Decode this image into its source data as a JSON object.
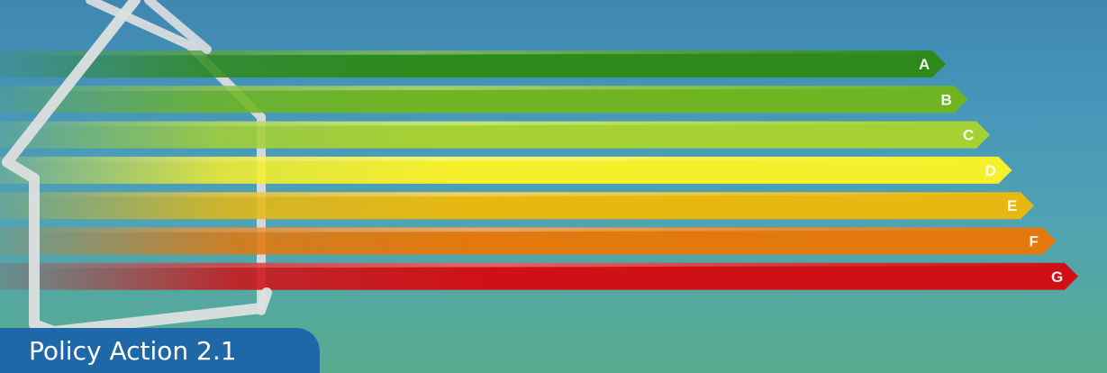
{
  "caption": {
    "text": "Policy Action 2.1"
  },
  "energy_scale": {
    "ratings": [
      "A",
      "B",
      "C",
      "D",
      "E",
      "F",
      "G"
    ],
    "colors": [
      "#2f8a1c",
      "#6fb522",
      "#a6d133",
      "#f6ef2c",
      "#e7b812",
      "#e2780e",
      "#cf1116"
    ]
  },
  "colors": {
    "background_top": "#3f87b0",
    "background_bottom": "#58ad8e",
    "caption_tab": "#1f68a7",
    "house_outline": "#d9dcdd"
  },
  "icons": [
    "house-outline-icon"
  ]
}
